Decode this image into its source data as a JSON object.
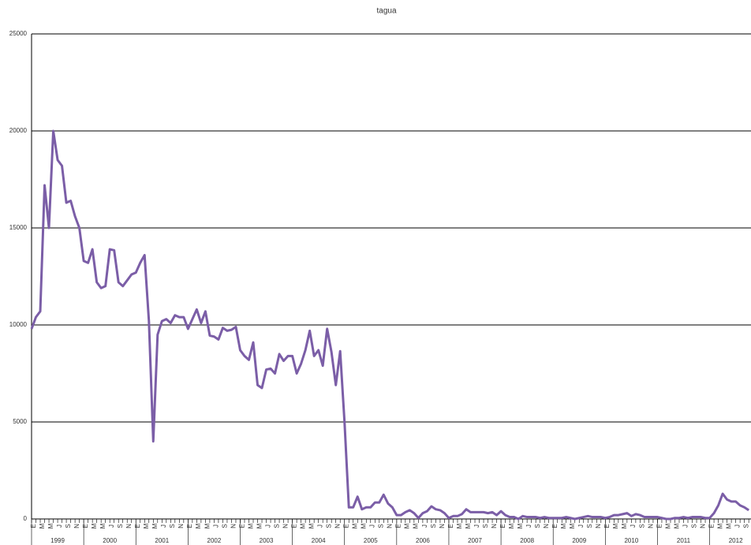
{
  "chart_data": {
    "type": "line",
    "title": "tagua",
    "years": [
      "1999",
      "2000",
      "2001",
      "2002",
      "2003",
      "2004",
      "2005",
      "2006",
      "2007",
      "2008",
      "2009",
      "2010",
      "2011",
      "2012"
    ],
    "month_labels": [
      "E",
      "M",
      "M",
      "J",
      "S",
      "N"
    ],
    "color": "#7b5ea7",
    "ylim": [
      0,
      25000
    ],
    "yticks": [
      0,
      5000,
      10000,
      15000,
      20000,
      25000
    ],
    "grid": true,
    "values": [
      9800,
      10400,
      10700,
      17200,
      15000,
      20000,
      18500,
      18200,
      16300,
      16400,
      15600,
      15000,
      13300,
      13200,
      13900,
      12200,
      11900,
      12000,
      13900,
      13850,
      12200,
      12000,
      12300,
      12600,
      12700,
      13200,
      13600,
      10200,
      4000,
      9500,
      10200,
      10300,
      10100,
      10500,
      10400,
      10400,
      9800,
      10300,
      10800,
      10100,
      10700,
      9450,
      9400,
      9250,
      9850,
      9700,
      9750,
      9900,
      8700,
      8400,
      8200,
      9100,
      6900,
      6750,
      7700,
      7750,
      7500,
      8500,
      8150,
      8400,
      8400,
      7500,
      8000,
      8700,
      9700,
      8400,
      8700,
      7900,
      9800,
      8600,
      6900,
      8650,
      5000,
      600,
      600,
      1150,
      500,
      600,
      600,
      850,
      850,
      1250,
      800,
      600,
      200,
      200,
      350,
      450,
      300,
      50,
      300,
      400,
      650,
      500,
      450,
      300,
      50,
      150,
      150,
      250,
      500,
      350,
      350,
      350,
      350,
      300,
      350,
      200,
      400,
      200,
      100,
      100,
      0,
      150,
      100,
      100,
      100,
      50,
      100,
      50,
      50,
      50,
      50,
      100,
      50,
      0,
      50,
      100,
      150,
      100,
      100,
      100,
      50,
      100,
      200,
      200,
      250,
      300,
      150,
      250,
      200,
      100,
      100,
      100,
      100,
      50,
      0,
      0,
      50,
      50,
      100,
      50,
      100,
      100,
      100,
      50,
      50,
      300,
      700,
      1300,
      1000,
      900,
      900,
      700,
      600,
      450
    ]
  }
}
